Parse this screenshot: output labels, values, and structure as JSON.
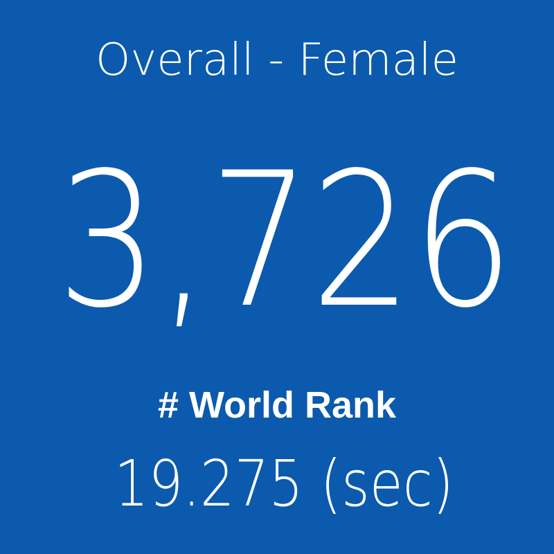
{
  "tile": {
    "title": "Overall - Female",
    "value": "3,726",
    "label": "# World Rank",
    "subtitle": "19.275 (sec)"
  }
}
